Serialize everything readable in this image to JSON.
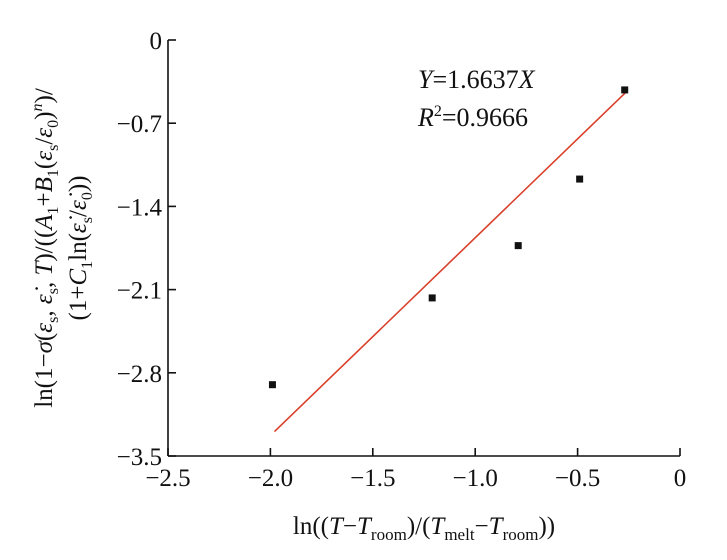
{
  "chart_data": {
    "type": "scatter",
    "title": "",
    "xlabel": "ln((T−T_room)/(T_melt−T_room))",
    "ylabel": "ln(1−σ(ε_s, ε̇_s, T)/((A_1+B_1(ε_s/ε_0)^n)/(1+C_1ln(ε̇_s/ε̇_0)))",
    "xlim": [
      -2.5,
      0
    ],
    "ylim": [
      -3.5,
      0
    ],
    "xticks": [
      -2.5,
      -2.0,
      -1.5,
      -1.0,
      -0.5,
      0
    ],
    "xtick_labels": [
      "−2.5",
      "−2.0",
      "−1.5",
      "−1.0",
      "−0.5",
      "0"
    ],
    "yticks": [
      0,
      -0.7,
      -1.4,
      -2.1,
      -2.8,
      -3.5
    ],
    "ytick_labels": [
      "0",
      "−0.7",
      "−1.4",
      "−2.1",
      "−2.8",
      "−3.5"
    ],
    "grid": false,
    "series": [
      {
        "type": "scatter",
        "marker": "square",
        "color": "#111111",
        "x": [
          -1.99,
          -1.21,
          -0.79,
          -0.49,
          -0.27
        ],
        "y": [
          -2.9,
          -2.17,
          -1.73,
          -1.17,
          -0.42
        ]
      },
      {
        "type": "line",
        "color": "#d9402b",
        "slope": 1.6637,
        "x": [
          -1.98,
          -0.26
        ]
      }
    ],
    "annotations": {
      "equation": "Y=1.6637X",
      "r_squared": "R²=0.9666"
    }
  }
}
